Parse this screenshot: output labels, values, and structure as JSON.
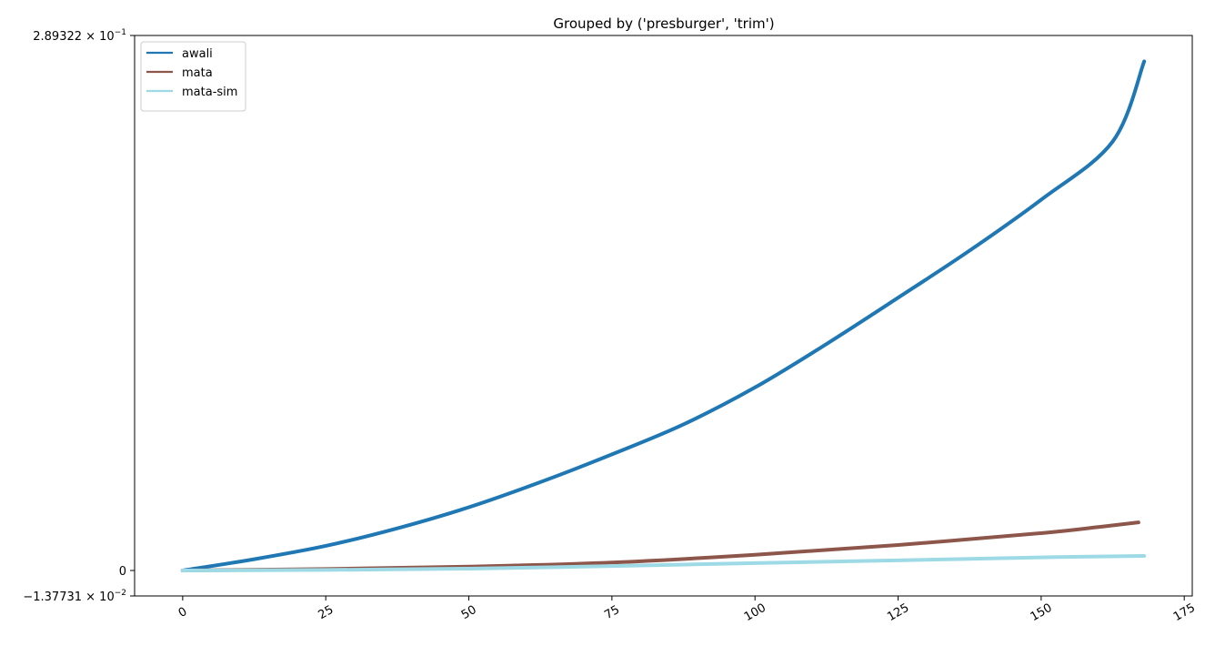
{
  "chart_data": {
    "type": "line",
    "title": "Grouped by ('presburger', 'trim')",
    "xlabel": "",
    "ylabel": "",
    "xlim": [
      -8.4,
      176.4
    ],
    "ylim": [
      -0.0137731,
      0.289322
    ],
    "x_ticks": [
      0,
      25,
      50,
      75,
      100,
      125,
      150,
      175
    ],
    "y_ticks": [
      {
        "value": 0.289322,
        "mantissa": "2.89322",
        "times": "×",
        "base": "10",
        "exp": "−1"
      },
      {
        "value": 0,
        "mantissa": "0",
        "times": "",
        "base": "",
        "exp": ""
      },
      {
        "value": -0.0137731,
        "mantissa": "−1.37731",
        "times": "×",
        "base": "10",
        "exp": "−2"
      }
    ],
    "legend_position": "upper-left",
    "grid": false,
    "series": [
      {
        "name": "awali",
        "color": "#1f77b4",
        "x": [
          0,
          12.5,
          25,
          37.5,
          50,
          62.5,
          75,
          87.5,
          100,
          112.5,
          125,
          137.5,
          150,
          162.5,
          168
        ],
        "y": [
          0,
          0.0061,
          0.0133,
          0.0228,
          0.0342,
          0.0478,
          0.0628,
          0.079,
          0.099,
          0.1225,
          0.1475,
          0.173,
          0.2005,
          0.232,
          0.2753
        ]
      },
      {
        "name": "mata",
        "color": "#8c564b",
        "x": [
          0,
          25,
          50,
          75,
          100,
          125,
          150,
          160,
          167
        ],
        "y": [
          0,
          0.0008,
          0.0021,
          0.0043,
          0.0085,
          0.0138,
          0.0202,
          0.0235,
          0.026
        ]
      },
      {
        "name": "mata-sim",
        "color": "#9edae5",
        "x": [
          0,
          25,
          50,
          75,
          100,
          125,
          150,
          168
        ],
        "y": [
          0,
          0.0003,
          0.001,
          0.0024,
          0.004,
          0.0055,
          0.0071,
          0.0079
        ]
      }
    ]
  }
}
